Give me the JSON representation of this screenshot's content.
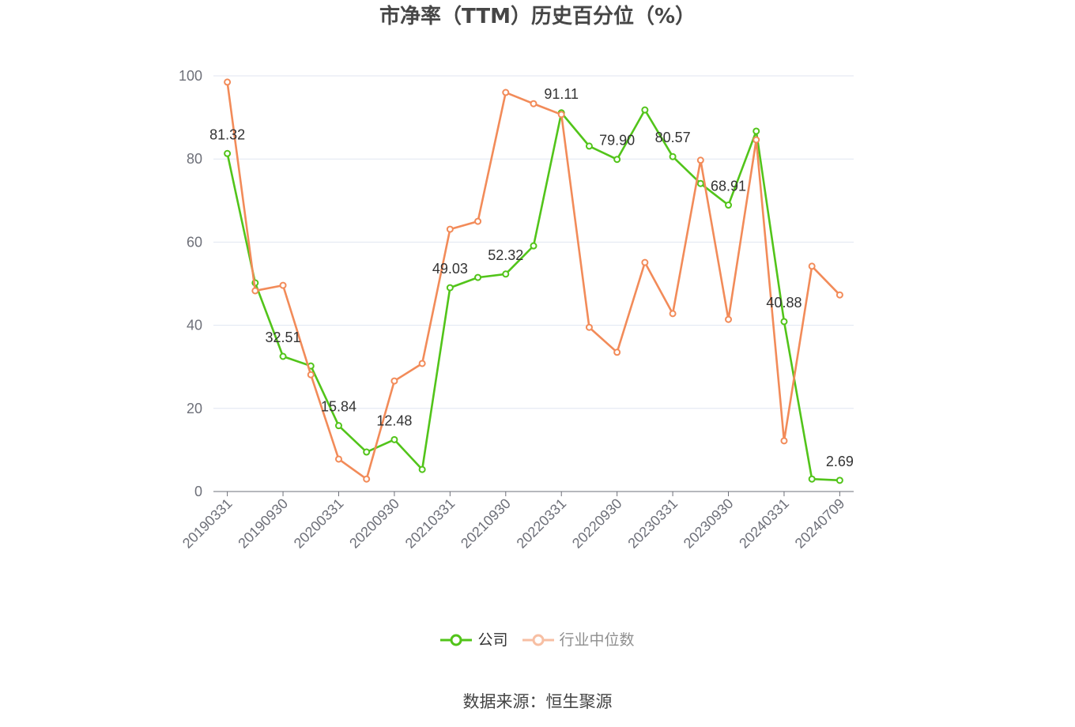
{
  "chart_data": {
    "type": "line",
    "title": "市净率（TTM）历史百分位（%）",
    "x": [
      "20190331",
      "",
      "20190930",
      "",
      "20200331",
      "",
      "20200930",
      "",
      "20210331",
      "",
      "20210930",
      "",
      "20220331",
      "",
      "20220930",
      "",
      "20230331",
      "",
      "20230930",
      "",
      "20240331",
      "",
      "20240709"
    ],
    "ylim": [
      0,
      100
    ],
    "yticks": [
      0,
      20,
      40,
      60,
      80,
      100
    ],
    "grid": true,
    "legend": "bottom",
    "series": [
      {
        "name": "公司",
        "color": "#52c41a",
        "values": [
          81.32,
          50.2,
          32.51,
          30.2,
          15.84,
          9.5,
          12.48,
          5.3,
          49.03,
          51.5,
          52.32,
          59.1,
          91.11,
          83.1,
          79.9,
          91.8,
          80.57,
          74.1,
          68.91,
          86.7,
          40.88,
          3.0,
          2.69
        ],
        "data_labels": [
          "81.32",
          null,
          "32.51",
          null,
          "15.84",
          null,
          "12.48",
          null,
          "49.03",
          null,
          "52.32",
          null,
          "91.11",
          null,
          "79.90",
          null,
          "80.57",
          null,
          "68.91",
          null,
          "40.88",
          null,
          "2.69"
        ]
      },
      {
        "name": "行业中位数",
        "color": "#f28b59",
        "values": [
          98.5,
          48.3,
          49.6,
          28.1,
          7.8,
          3.0,
          26.6,
          30.8,
          63.1,
          65.0,
          96.0,
          93.3,
          90.7,
          39.5,
          33.5,
          55.1,
          42.8,
          79.7,
          41.4,
          84.6,
          12.2,
          54.2,
          47.3
        ]
      }
    ]
  },
  "source": "数据来源：恒生聚源"
}
